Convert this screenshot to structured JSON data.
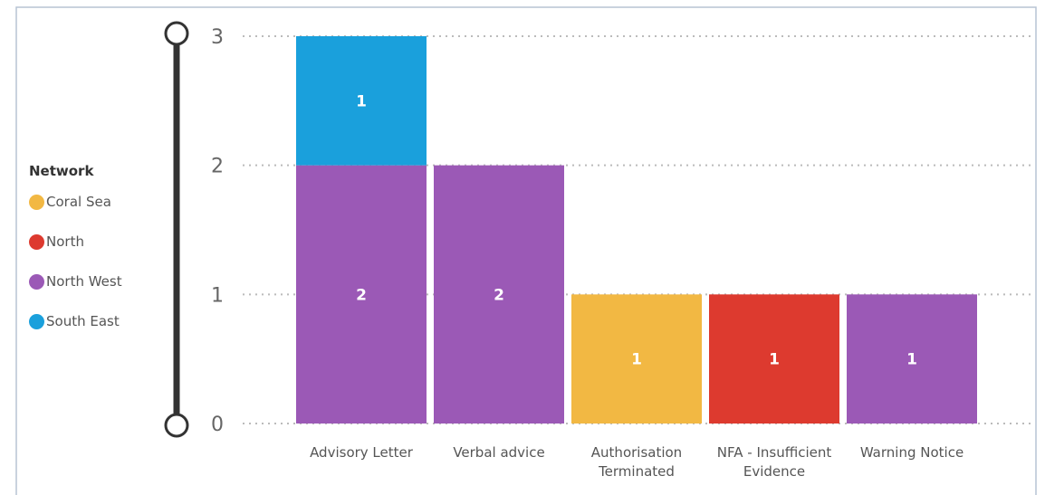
{
  "chart_data": {
    "type": "stacked_bar",
    "legend_title": "Network",
    "categories": [
      "Advisory Letter",
      "Verbal advice",
      "Authorisation Terminated",
      "NFA - Insufficient Evidence",
      "Warning Notice"
    ],
    "series": [
      {
        "name": "Coral Sea",
        "color": "#f2b843",
        "values": [
          null,
          null,
          1,
          null,
          null
        ]
      },
      {
        "name": "North",
        "color": "#dd3a2f",
        "values": [
          null,
          null,
          null,
          1,
          null
        ]
      },
      {
        "name": "North West",
        "color": "#9b59b6",
        "values": [
          2,
          2,
          null,
          null,
          1
        ]
      },
      {
        "name": "South East",
        "color": "#1aa0dc",
        "values": [
          1,
          null,
          null,
          null,
          null
        ]
      }
    ],
    "ylim": [
      0,
      3
    ],
    "yticks": [
      0,
      1,
      2,
      3
    ],
    "grid": true,
    "legend": "left"
  }
}
